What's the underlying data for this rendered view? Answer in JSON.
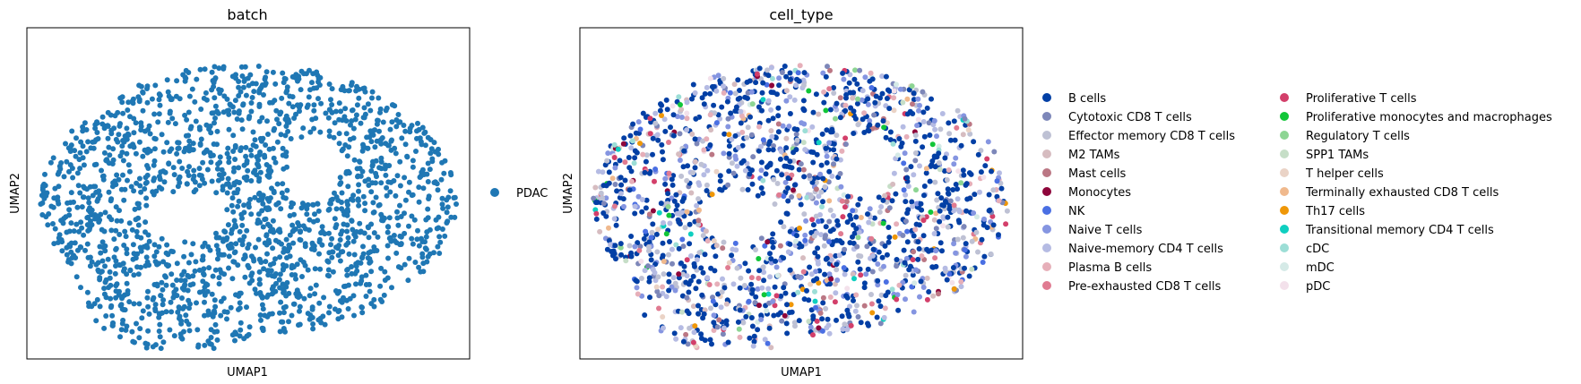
{
  "chart_data": [
    {
      "type": "scatter",
      "title": "batch",
      "xlabel": "UMAP1",
      "ylabel": "UMAP2",
      "grid": false,
      "legend_position": "right",
      "xticks": [],
      "yticks": [],
      "series": [
        {
          "name": "PDAC",
          "color": "#1f77b4",
          "approx_point_count": 1800
        }
      ]
    },
    {
      "type": "scatter",
      "title": "cell_type",
      "xlabel": "UMAP1",
      "ylabel": "UMAP2",
      "grid": false,
      "legend_position": "right",
      "legend_columns": 2,
      "xticks": [],
      "yticks": [],
      "series": [
        {
          "name": "B cells",
          "color": "#023fa5"
        },
        {
          "name": "Cytotoxic CD8 T cells",
          "color": "#7d87b9"
        },
        {
          "name": "Effector memory CD8 T cells",
          "color": "#bec1d4"
        },
        {
          "name": "M2 TAMs",
          "color": "#d6bcc0"
        },
        {
          "name": "Mast cells",
          "color": "#bb7784"
        },
        {
          "name": "Monocytes",
          "color": "#8e063b"
        },
        {
          "name": "NK",
          "color": "#4a6fe3"
        },
        {
          "name": "Naive T cells",
          "color": "#8595e1"
        },
        {
          "name": "Naive-memory CD4 T cells",
          "color": "#b5bbe3"
        },
        {
          "name": "Plasma B cells",
          "color": "#e6afb9"
        },
        {
          "name": "Pre-exhausted CD8 T cells",
          "color": "#e07b91"
        },
        {
          "name": "Proliferative T cells",
          "color": "#d33f6a"
        },
        {
          "name": "Proliferative monocytes and macrophages",
          "color": "#11c638"
        },
        {
          "name": "Regulatory T cells",
          "color": "#8dd593"
        },
        {
          "name": "SPP1 TAMs",
          "color": "#c6dec7"
        },
        {
          "name": "T helper cells",
          "color": "#ead3c6"
        },
        {
          "name": "Terminally exhausted CD8 T cells",
          "color": "#f0b98d"
        },
        {
          "name": "Th17 cells",
          "color": "#ef9708"
        },
        {
          "name": "Transitional memory CD4 T cells",
          "color": "#0fcfc0"
        },
        {
          "name": "cDC",
          "color": "#9cded6"
        },
        {
          "name": "mDC",
          "color": "#d5eae7"
        },
        {
          "name": "pDC",
          "color": "#f3e1eb"
        }
      ]
    }
  ]
}
